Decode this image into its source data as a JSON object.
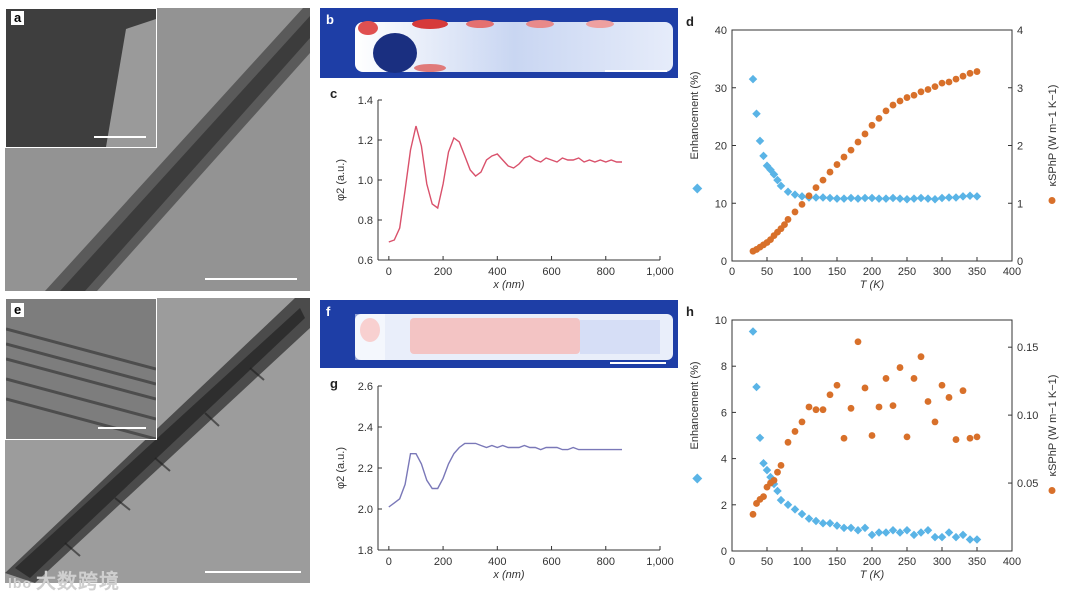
{
  "labels": {
    "a": "a",
    "b": "b",
    "c": "c",
    "d": "d",
    "e": "e",
    "f": "f",
    "g": "g",
    "h": "h"
  },
  "watermark": "大数跨境",
  "watermark_logo": "lbo",
  "colors": {
    "line_c": "#d9516b",
    "line_g": "#7a78b8",
    "diamond": "#5ab4e6",
    "circle": "#d8702a",
    "axis": "#333333"
  },
  "chart_data": [
    {
      "id": "c",
      "type": "line",
      "xlabel": "x (nm)",
      "ylabel": "φ2 (a.u.)",
      "xlim": [
        -40,
        1000
      ],
      "ylim": [
        0.6,
        1.4
      ],
      "xticks": [
        0,
        200,
        400,
        600,
        800,
        1000
      ],
      "xtick_labels": [
        "0",
        "200",
        "400",
        "600",
        "800",
        "1,000"
      ],
      "yticks": [
        0.6,
        0.8,
        1.0,
        1.2,
        1.4
      ],
      "ytick_labels": [
        "0.6",
        "0.8",
        "1.0",
        "1.2",
        "1.4"
      ],
      "x": [
        0,
        20,
        40,
        60,
        80,
        100,
        120,
        140,
        160,
        180,
        200,
        220,
        240,
        260,
        280,
        300,
        320,
        340,
        360,
        380,
        400,
        420,
        440,
        460,
        480,
        500,
        520,
        540,
        560,
        580,
        600,
        620,
        640,
        660,
        680,
        700,
        720,
        740,
        760,
        780,
        800,
        820,
        840,
        860
      ],
      "y": [
        0.69,
        0.7,
        0.76,
        0.95,
        1.15,
        1.27,
        1.17,
        0.98,
        0.88,
        0.86,
        0.98,
        1.14,
        1.21,
        1.19,
        1.12,
        1.05,
        1.02,
        1.04,
        1.1,
        1.12,
        1.13,
        1.1,
        1.07,
        1.06,
        1.08,
        1.11,
        1.12,
        1.1,
        1.09,
        1.11,
        1.1,
        1.09,
        1.11,
        1.1,
        1.1,
        1.11,
        1.09,
        1.1,
        1.09,
        1.1,
        1.09,
        1.1,
        1.09,
        1.09
      ]
    },
    {
      "id": "g",
      "type": "line",
      "xlabel": "x (nm)",
      "ylabel": "φ2 (a.u.)",
      "xlim": [
        -40,
        1000
      ],
      "ylim": [
        1.8,
        2.6
      ],
      "xticks": [
        0,
        200,
        400,
        600,
        800,
        1000
      ],
      "xtick_labels": [
        "0",
        "200",
        "400",
        "600",
        "800",
        "1,000"
      ],
      "yticks": [
        1.8,
        2.0,
        2.2,
        2.4,
        2.6
      ],
      "ytick_labels": [
        "1.8",
        "2.0",
        "2.2",
        "2.4",
        "2.6"
      ],
      "x": [
        0,
        20,
        40,
        60,
        80,
        100,
        120,
        140,
        160,
        180,
        200,
        220,
        240,
        260,
        280,
        300,
        320,
        340,
        360,
        380,
        400,
        420,
        440,
        460,
        480,
        500,
        520,
        540,
        560,
        580,
        600,
        620,
        640,
        660,
        680,
        700,
        720,
        740,
        760,
        780,
        800,
        820,
        840,
        860
      ],
      "y": [
        2.01,
        2.03,
        2.05,
        2.12,
        2.27,
        2.27,
        2.22,
        2.14,
        2.1,
        2.1,
        2.15,
        2.22,
        2.27,
        2.3,
        2.32,
        2.32,
        2.32,
        2.31,
        2.3,
        2.31,
        2.3,
        2.31,
        2.3,
        2.3,
        2.3,
        2.31,
        2.3,
        2.3,
        2.29,
        2.3,
        2.3,
        2.3,
        2.29,
        2.29,
        2.3,
        2.29,
        2.29,
        2.29,
        2.29,
        2.29,
        2.29,
        2.29,
        2.29,
        2.29
      ]
    },
    {
      "id": "d",
      "type": "scatter",
      "xlabel": "T (K)",
      "ylabel_left": "Enhancement (%)",
      "ylabel_right": "κSPhP (W m−1 K−1)",
      "xlim": [
        0,
        400
      ],
      "ylim_left": [
        0,
        40
      ],
      "ylim_right": [
        0,
        4
      ],
      "xticks": [
        0,
        50,
        100,
        150,
        200,
        250,
        300,
        350,
        400
      ],
      "xtick_labels": [
        "0",
        "50",
        "100",
        "150",
        "200",
        "250",
        "300",
        "350",
        "400"
      ],
      "yticks_left": [
        0,
        10,
        20,
        30,
        40
      ],
      "ytick_labels_left": [
        "0",
        "10",
        "20",
        "30",
        "40"
      ],
      "yticks_right": [
        0,
        1,
        2,
        3,
        4
      ],
      "ytick_labels_right": [
        "0",
        "1",
        "2",
        "3",
        "4"
      ],
      "series": [
        {
          "name": "Enhancement",
          "marker": "diamond",
          "axis": "left",
          "x": [
            30,
            35,
            40,
            45,
            50,
            55,
            60,
            65,
            70,
            80,
            90,
            100,
            110,
            120,
            130,
            140,
            150,
            160,
            170,
            180,
            190,
            200,
            210,
            220,
            230,
            240,
            250,
            260,
            270,
            280,
            290,
            300,
            310,
            320,
            330,
            340,
            350
          ],
          "y": [
            31.5,
            25.5,
            20.8,
            18.2,
            16.5,
            15.8,
            15.0,
            14.0,
            13.0,
            12.0,
            11.5,
            11.2,
            11.0,
            11.0,
            11.0,
            10.9,
            10.8,
            10.8,
            10.9,
            10.8,
            10.9,
            10.9,
            10.8,
            10.8,
            10.9,
            10.8,
            10.7,
            10.8,
            10.9,
            10.8,
            10.7,
            10.9,
            11.0,
            11.0,
            11.2,
            11.3,
            11.2
          ]
        },
        {
          "name": "κSPhP",
          "marker": "circle",
          "axis": "right",
          "x": [
            30,
            35,
            40,
            45,
            50,
            55,
            60,
            65,
            70,
            75,
            80,
            90,
            100,
            110,
            120,
            130,
            140,
            150,
            160,
            170,
            180,
            190,
            200,
            210,
            220,
            230,
            240,
            250,
            260,
            270,
            280,
            290,
            300,
            310,
            320,
            330,
            340,
            350
          ],
          "y": [
            0.17,
            0.2,
            0.24,
            0.28,
            0.32,
            0.37,
            0.44,
            0.5,
            0.56,
            0.63,
            0.72,
            0.85,
            0.98,
            1.13,
            1.27,
            1.4,
            1.54,
            1.67,
            1.8,
            1.92,
            2.06,
            2.2,
            2.35,
            2.47,
            2.6,
            2.7,
            2.77,
            2.83,
            2.87,
            2.93,
            2.97,
            3.02,
            3.08,
            3.1,
            3.15,
            3.2,
            3.25,
            3.28
          ]
        }
      ]
    },
    {
      "id": "h",
      "type": "scatter",
      "xlabel": "T (K)",
      "ylabel_left": "Enhancement (%)",
      "ylabel_right": "κSPhP (W m−1 K−1)",
      "xlim": [
        0,
        400
      ],
      "ylim_left": [
        0,
        10
      ],
      "ylim_right": [
        0,
        0.17
      ],
      "xticks": [
        0,
        50,
        100,
        150,
        200,
        250,
        300,
        350,
        400
      ],
      "xtick_labels": [
        "0",
        "50",
        "100",
        "150",
        "200",
        "250",
        "300",
        "350",
        "400"
      ],
      "yticks_left": [
        0,
        2,
        4,
        6,
        8,
        10
      ],
      "ytick_labels_left": [
        "0",
        "2",
        "4",
        "6",
        "8",
        "10"
      ],
      "yticks_right": [
        0.05,
        0.1,
        0.15
      ],
      "ytick_labels_right": [
        "0.05",
        "0.10",
        "0.15"
      ],
      "series": [
        {
          "name": "Enhancement",
          "marker": "diamond",
          "axis": "left",
          "x": [
            30,
            35,
            40,
            45,
            50,
            55,
            60,
            65,
            70,
            80,
            90,
            100,
            110,
            120,
            130,
            140,
            150,
            160,
            170,
            180,
            190,
            200,
            210,
            220,
            230,
            240,
            250,
            260,
            270,
            280,
            290,
            300,
            310,
            320,
            330,
            340,
            350
          ],
          "y": [
            9.5,
            7.1,
            4.9,
            3.8,
            3.5,
            3.2,
            2.9,
            2.6,
            2.2,
            2.0,
            1.8,
            1.6,
            1.4,
            1.3,
            1.2,
            1.2,
            1.1,
            1.0,
            1.0,
            0.9,
            1.0,
            0.7,
            0.8,
            0.8,
            0.9,
            0.8,
            0.9,
            0.7,
            0.8,
            0.9,
            0.6,
            0.6,
            0.8,
            0.6,
            0.7,
            0.5,
            0.5
          ]
        },
        {
          "name": "κSPhP",
          "marker": "circle",
          "axis": "right",
          "x": [
            30,
            35,
            40,
            45,
            50,
            55,
            60,
            65,
            70,
            80,
            90,
            100,
            110,
            120,
            130,
            140,
            150,
            160,
            170,
            180,
            190,
            200,
            210,
            220,
            230,
            240,
            250,
            260,
            270,
            280,
            290,
            300,
            310,
            320,
            330,
            340,
            350
          ],
          "y": [
            0.027,
            0.035,
            0.038,
            0.04,
            0.047,
            0.05,
            0.052,
            0.058,
            0.063,
            0.08,
            0.088,
            0.095,
            0.106,
            0.104,
            0.104,
            0.115,
            0.122,
            0.083,
            0.105,
            0.154,
            0.12,
            0.085,
            0.106,
            0.127,
            0.107,
            0.135,
            0.084,
            0.127,
            0.143,
            0.11,
            0.095,
            0.122,
            0.113,
            0.082,
            0.118,
            0.083,
            0.084
          ]
        }
      ]
    }
  ]
}
